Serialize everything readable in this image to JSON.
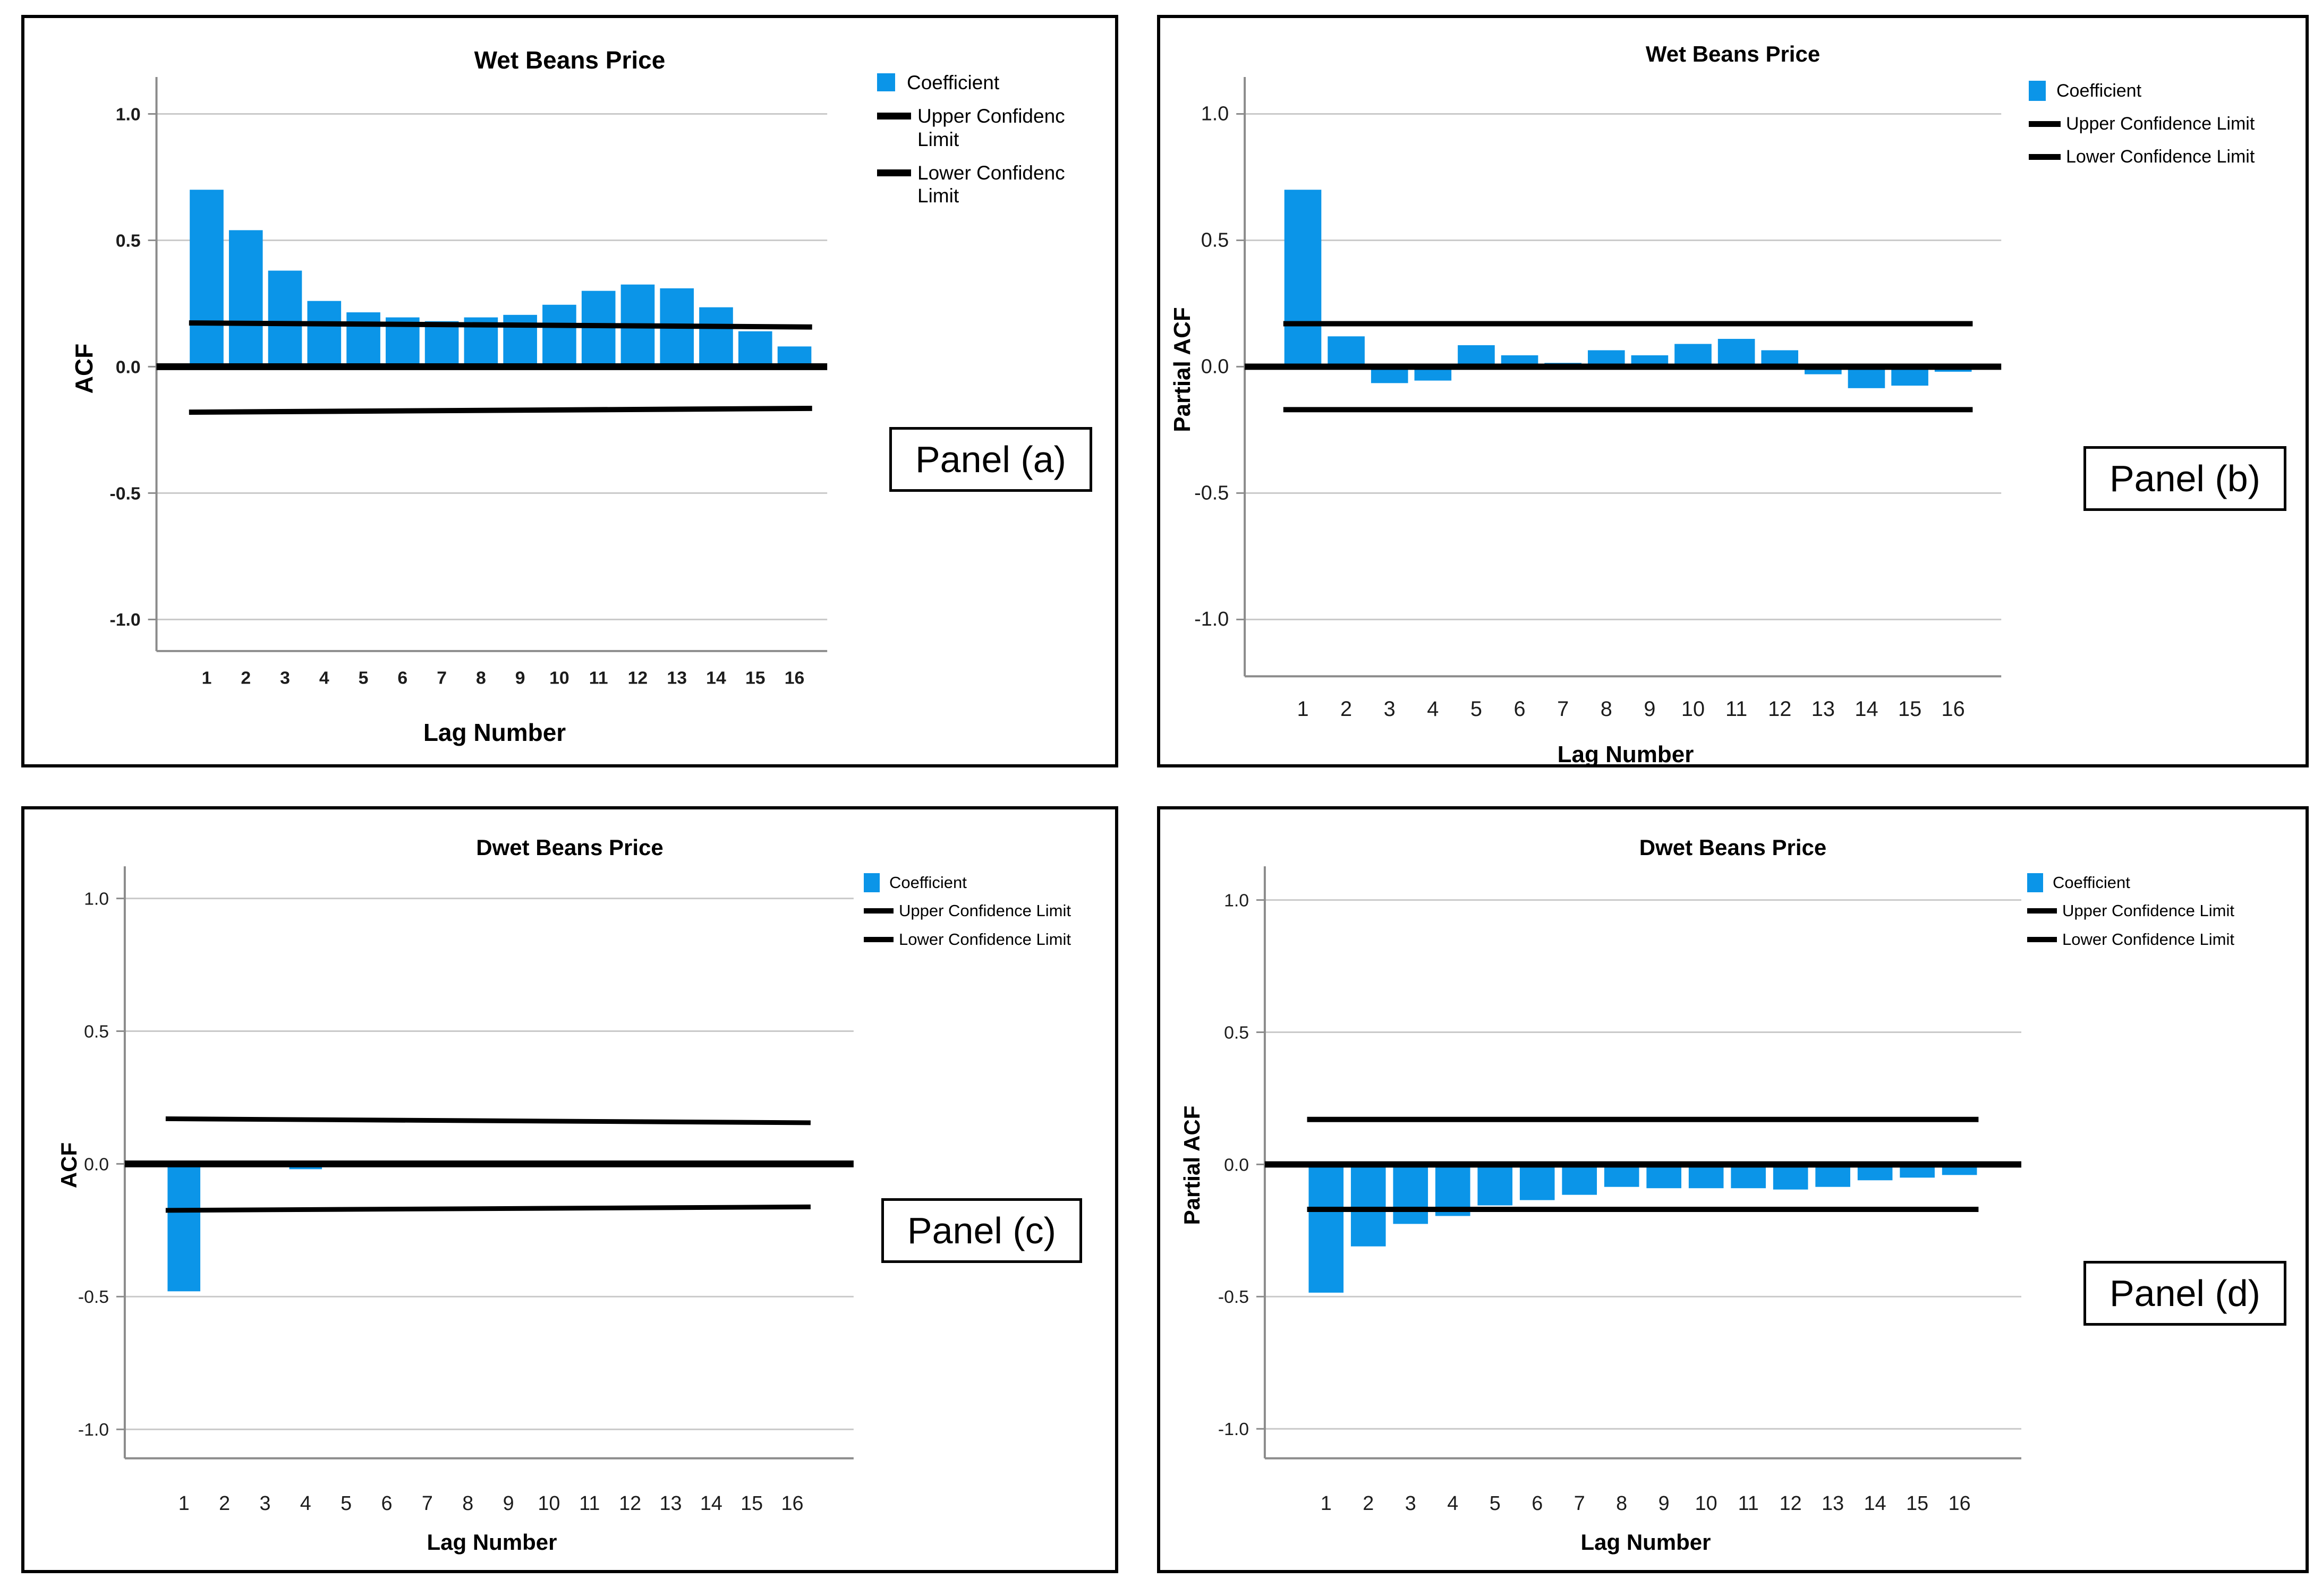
{
  "figure": {
    "background": "#ffffff"
  },
  "colors": {
    "bar_blue": "#0b95e8",
    "grid_gray": "#c9c9c9",
    "axis_gray": "#8b8b8b",
    "line_black": "#000000",
    "tick_text": "#1c1c1c"
  },
  "chart_data": [
    {
      "type": "bar",
      "panel_label": "Panel (a)",
      "title": "Wet Beans Price",
      "xlabel": "Lag Number",
      "ylabel": "ACF",
      "legend": [
        "Coefficient",
        "Upper Confidenc Limit",
        "Lower Confidenc Limit"
      ],
      "legend_position": "top-right",
      "grid": true,
      "categories": [
        "1",
        "2",
        "3",
        "4",
        "5",
        "6",
        "7",
        "8",
        "9",
        "10",
        "11",
        "12",
        "13",
        "14",
        "15",
        "16"
      ],
      "values": [
        0.7,
        0.54,
        0.38,
        0.26,
        0.215,
        0.195,
        0.18,
        0.195,
        0.205,
        0.245,
        0.3,
        0.325,
        0.31,
        0.235,
        0.14,
        0.08
      ],
      "upper_confidence_limit": [
        0.173,
        0.157
      ],
      "lower_confidence_limit": [
        -0.18,
        -0.165
      ],
      "ylim": [
        -1.15,
        1.15
      ],
      "ytick_values": [
        1.0,
        0.5,
        0.0,
        -0.5,
        -1.0
      ],
      "ytick_labels": [
        "1.0",
        "0.5",
        "0.0",
        "-0.5",
        "-1.0"
      ]
    },
    {
      "type": "bar",
      "panel_label": "Panel (b)",
      "title": "Wet Beans Price",
      "xlabel": "Lag Number",
      "ylabel": "Partial ACF",
      "legend": [
        "Coefficient",
        "Upper Confidence Limit",
        "Lower Confidence Limit"
      ],
      "legend_position": "top-right",
      "grid": true,
      "categories": [
        "1",
        "2",
        "3",
        "4",
        "5",
        "6",
        "7",
        "8",
        "9",
        "10",
        "11",
        "12",
        "13",
        "14",
        "15",
        "16"
      ],
      "values": [
        0.7,
        0.12,
        -0.065,
        -0.055,
        0.085,
        0.045,
        0.015,
        0.065,
        0.045,
        0.09,
        0.11,
        0.065,
        -0.03,
        -0.085,
        -0.075,
        -0.02
      ],
      "upper_confidence_limit": [
        0.17,
        0.17
      ],
      "lower_confidence_limit": [
        -0.17,
        -0.17
      ],
      "ylim": [
        -1.15,
        1.15
      ],
      "ytick_values": [
        1.0,
        0.5,
        0.0,
        -0.5,
        -1.0
      ],
      "ytick_labels": [
        "1.0",
        "0.5",
        "0.0",
        "-0.5",
        "-1.0"
      ]
    },
    {
      "type": "bar",
      "panel_label": "Panel (c)",
      "title": "Dwet Beans Price",
      "xlabel": "Lag Number",
      "ylabel": "ACF",
      "legend": [
        "Coefficient",
        "Upper Confidence Limit",
        "Lower Confidence Limit"
      ],
      "legend_position": "top-right",
      "grid": true,
      "categories": [
        "1",
        "2",
        "3",
        "4",
        "5",
        "6",
        "7",
        "8",
        "9",
        "10",
        "11",
        "12",
        "13",
        "14",
        "15",
        "16"
      ],
      "values": [
        -0.48,
        0,
        0,
        -0.02,
        0,
        0,
        0,
        0,
        -0.012,
        -0.012,
        0,
        0,
        0,
        0,
        0,
        -0.01
      ],
      "upper_confidence_limit": [
        0.17,
        0.155
      ],
      "lower_confidence_limit": [
        -0.175,
        -0.162
      ],
      "ylim": [
        -1.15,
        1.15
      ],
      "ytick_values": [
        1.0,
        0.5,
        0.0,
        -0.5,
        -1.0
      ],
      "ytick_labels": [
        "1.0",
        "0.5",
        "0.0",
        "-0.5",
        "-1.0"
      ]
    },
    {
      "type": "bar",
      "panel_label": "Panel (d)",
      "title": "Dwet Beans Price",
      "xlabel": "Lag Number",
      "ylabel": "Partial ACF",
      "legend": [
        "Coefficient",
        "Upper Confidence Limit",
        "Lower Confidence Limit"
      ],
      "legend_position": "top-right",
      "grid": true,
      "categories": [
        "1",
        "2",
        "3",
        "4",
        "5",
        "6",
        "7",
        "8",
        "9",
        "10",
        "11",
        "12",
        "13",
        "14",
        "15",
        "16"
      ],
      "values": [
        -0.485,
        -0.31,
        -0.225,
        -0.195,
        -0.155,
        -0.135,
        -0.115,
        -0.085,
        -0.09,
        -0.09,
        -0.09,
        -0.095,
        -0.085,
        -0.06,
        -0.05,
        -0.04
      ],
      "upper_confidence_limit": [
        0.17,
        0.17
      ],
      "lower_confidence_limit": [
        -0.17,
        -0.17
      ],
      "ylim": [
        -1.15,
        1.15
      ],
      "ytick_values": [
        1.0,
        0.5,
        0.0,
        -0.5,
        -1.0
      ],
      "ytick_labels": [
        "1.0",
        "0.5",
        "0.0",
        "-0.5",
        "-1.0"
      ]
    }
  ]
}
